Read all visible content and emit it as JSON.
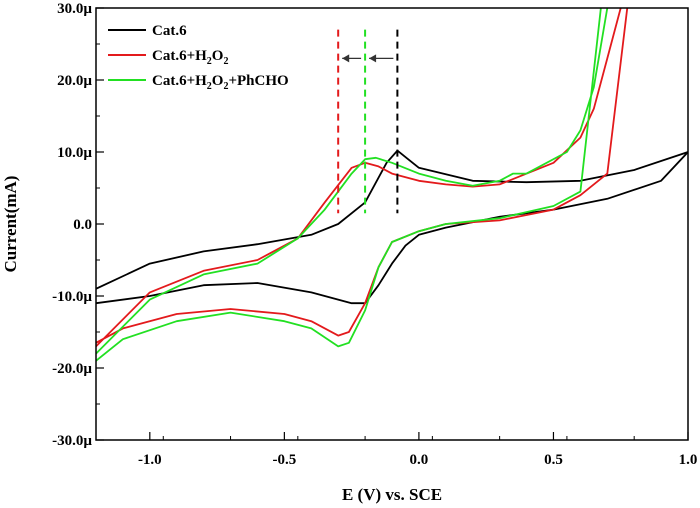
{
  "chart_data": {
    "type": "line",
    "title": "",
    "xlabel": "E (V) vs. SCE",
    "ylabel": "Current(mA)",
    "xlim": [
      -1.2,
      1.0
    ],
    "ylim": [
      -30,
      30
    ],
    "x_ticks": [
      -1.0,
      -0.5,
      0.0,
      0.5,
      1.0
    ],
    "x_tick_labels": [
      "-1.0",
      "-0.5",
      "0.0",
      "0.5",
      "1.0"
    ],
    "y_ticks": [
      -30,
      -20,
      -10,
      0,
      10,
      20,
      30
    ],
    "y_tick_labels": [
      "-30.0µ",
      "-20.0µ",
      "-10.0µ",
      "0.0",
      "10.0µ",
      "20.0µ",
      "30.0µ"
    ],
    "grid": false,
    "legend_position": "top-left",
    "legend": [
      {
        "color": "#000000",
        "prefix": "Cat.6",
        "h2": "",
        "o2": "",
        "suffix": ""
      },
      {
        "color": "#e31a1c",
        "prefix": "Cat.6+H",
        "h2": "2",
        "o2": "2",
        "suffix": ""
      },
      {
        "color": "#22e022",
        "prefix": "Cat.6+H",
        "h2": "2",
        "o2": "2",
        "suffix": "+PhCHO"
      }
    ],
    "series": [
      {
        "color": "#000000",
        "x": [
          -1.2,
          -1.0,
          -0.8,
          -0.6,
          -0.4,
          -0.3,
          -0.2,
          -0.12,
          -0.08,
          -0.04,
          0.0,
          0.2,
          0.4,
          0.6,
          0.8,
          1.0,
          1.0,
          0.9,
          0.7,
          0.5,
          0.3,
          0.1,
          0.0,
          -0.05,
          -0.1,
          -0.15,
          -0.2,
          -0.25,
          -0.4,
          -0.6,
          -0.8,
          -1.0,
          -1.2
        ],
        "y": [
          -9.0,
          -5.5,
          -3.8,
          -2.8,
          -1.5,
          0.0,
          3.0,
          8.5,
          10.2,
          9.0,
          7.8,
          6.0,
          5.8,
          6.0,
          7.5,
          10.0,
          10.0,
          6.0,
          3.5,
          2.0,
          1.0,
          -0.5,
          -1.5,
          -3.0,
          -5.5,
          -8.5,
          -11.0,
          -11.0,
          -9.5,
          -8.2,
          -8.5,
          -10.0,
          -11.0
        ]
      },
      {
        "color": "#e31a1c",
        "x": [
          -1.2,
          -1.0,
          -0.8,
          -0.6,
          -0.45,
          -0.35,
          -0.25,
          -0.2,
          -0.15,
          -0.1,
          0.0,
          0.1,
          0.2,
          0.3,
          0.5,
          0.6,
          0.65,
          0.7,
          0.75,
          0.8,
          0.7,
          0.6,
          0.5,
          0.3,
          0.1,
          0.0,
          -0.1,
          -0.15,
          -0.2,
          -0.26,
          -0.3,
          -0.4,
          -0.5,
          -0.7,
          -0.9,
          -1.1,
          -1.2
        ],
        "y": [
          -17.0,
          -9.5,
          -6.5,
          -5.0,
          -2.0,
          3.0,
          7.8,
          8.5,
          8.0,
          7.0,
          6.0,
          5.5,
          5.2,
          5.5,
          8.5,
          12.0,
          16.0,
          23.0,
          30.0,
          38.0,
          7.0,
          4.0,
          2.0,
          0.5,
          0.0,
          -1.0,
          -2.5,
          -6.0,
          -11.0,
          -15.0,
          -15.5,
          -13.5,
          -12.5,
          -11.8,
          -12.5,
          -14.5,
          -16.5
        ]
      },
      {
        "color": "#22e022",
        "x": [
          -1.2,
          -1.0,
          -0.8,
          -0.6,
          -0.45,
          -0.35,
          -0.25,
          -0.2,
          -0.16,
          -0.1,
          0.0,
          0.1,
          0.2,
          0.3,
          0.35,
          0.4,
          0.55,
          0.6,
          0.65,
          0.7,
          0.7,
          0.6,
          0.5,
          0.3,
          0.1,
          0.0,
          -0.1,
          -0.15,
          -0.2,
          -0.26,
          -0.3,
          -0.4,
          -0.5,
          -0.7,
          -0.9,
          -1.1,
          -1.2
        ],
        "y": [
          -18.0,
          -10.5,
          -7.0,
          -5.5,
          -2.0,
          2.0,
          7.0,
          9.0,
          9.2,
          8.5,
          7.0,
          6.0,
          5.3,
          6.0,
          7.0,
          7.0,
          10.0,
          13.0,
          19.0,
          30.0,
          38.0,
          4.5,
          2.5,
          0.8,
          0.0,
          -1.0,
          -2.5,
          -6.0,
          -12.0,
          -16.5,
          -17.0,
          -14.5,
          -13.5,
          -12.3,
          -13.5,
          -16.0,
          -19.0
        ]
      }
    ],
    "annotations": [
      {
        "type": "vline",
        "x": -0.3,
        "color": "#e31a1c",
        "style": "dashed"
      },
      {
        "type": "vline",
        "x": -0.2,
        "color": "#22e022",
        "style": "dashed"
      },
      {
        "type": "vline",
        "x": -0.08,
        "color": "#000000",
        "style": "dashed"
      },
      {
        "type": "arrow",
        "from_x": -0.2,
        "to_x": -0.3,
        "y": 23
      },
      {
        "type": "arrow",
        "from_x": -0.08,
        "to_x": -0.2,
        "y": 23
      }
    ]
  }
}
